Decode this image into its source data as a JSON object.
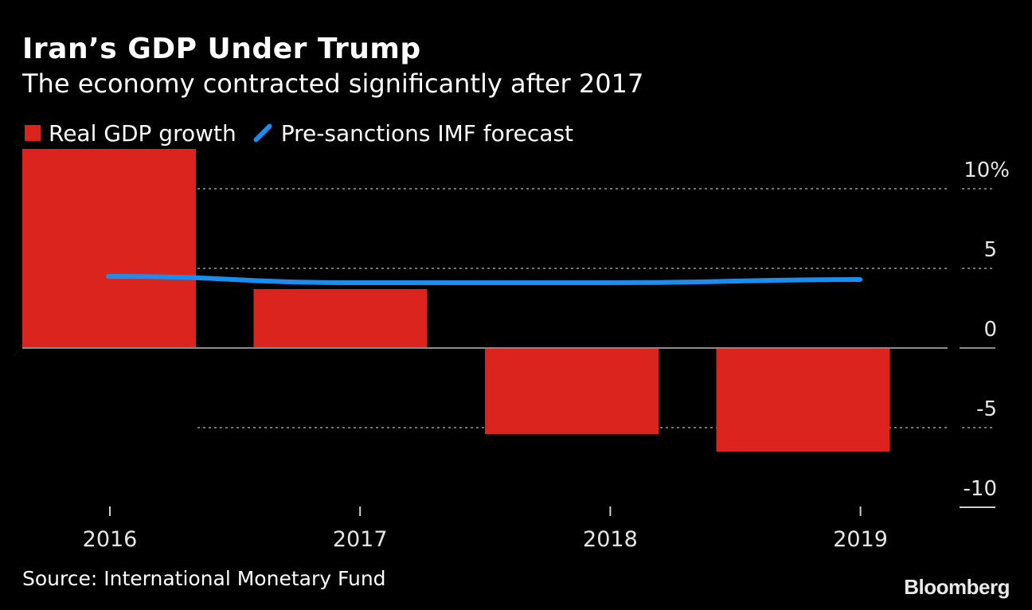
{
  "header": {
    "title": "Iran’s GDP Under Trump",
    "subtitle": "The economy contracted significantly after 2017"
  },
  "legend": {
    "bar_label": "Real GDP growth",
    "line_label": "Pre-sanctions IMF forecast"
  },
  "colors": {
    "bar": "#db241d",
    "line": "#1a8ef0",
    "grid": "#9a9a9a",
    "axis_text": "#e6e6e6"
  },
  "chart_data": {
    "type": "bar",
    "categories": [
      "2016",
      "2017",
      "2018",
      "2019"
    ],
    "series": [
      {
        "name": "Real GDP growth",
        "type": "bar",
        "values": [
          12.5,
          3.7,
          -5.4,
          -6.5
        ]
      },
      {
        "name": "Pre-sanctions IMF forecast",
        "type": "line",
        "values": [
          4.5,
          4.1,
          4.1,
          4.3
        ]
      }
    ],
    "ylim": [
      -10,
      10
    ],
    "yticks": [
      10,
      5,
      0,
      -5,
      -10
    ],
    "ytick_labels": [
      "10%",
      "5",
      "0",
      "-5",
      "-10"
    ],
    "grid": true,
    "legend_position": "top-left",
    "y_axis_position": "right"
  },
  "footer": {
    "source": "Source: International Monetary Fund",
    "brand": "Bloomberg"
  }
}
